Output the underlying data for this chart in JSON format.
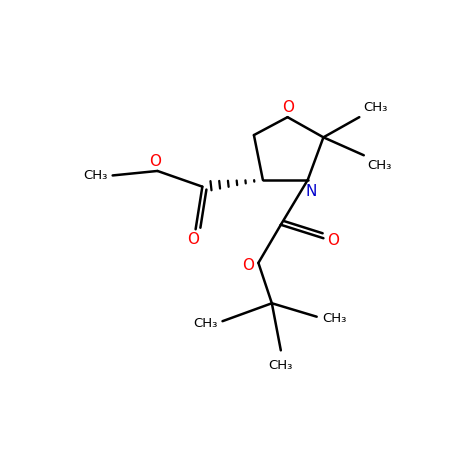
{
  "bg_color": "#ffffff",
  "bond_color": "#000000",
  "oxygen_color": "#ff0000",
  "nitrogen_color": "#0000cc",
  "line_width": 1.8,
  "figsize": [
    4.54,
    4.63
  ],
  "dpi": 100,
  "xlim": [
    0,
    10
  ],
  "ylim": [
    0,
    10
  ]
}
